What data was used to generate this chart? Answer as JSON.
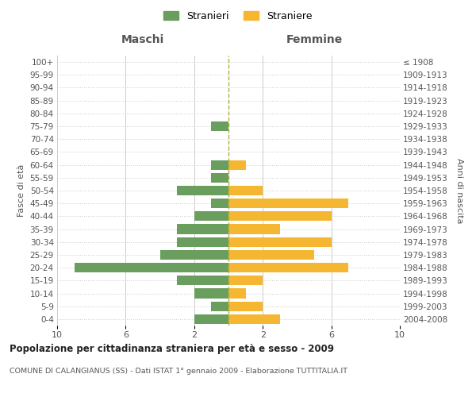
{
  "age_groups": [
    "0-4",
    "5-9",
    "10-14",
    "15-19",
    "20-24",
    "25-29",
    "30-34",
    "35-39",
    "40-44",
    "45-49",
    "50-54",
    "55-59",
    "60-64",
    "65-69",
    "70-74",
    "75-79",
    "80-84",
    "85-89",
    "90-94",
    "95-99",
    "100+"
  ],
  "birth_years": [
    "2004-2008",
    "1999-2003",
    "1994-1998",
    "1989-1993",
    "1984-1988",
    "1979-1983",
    "1974-1978",
    "1969-1973",
    "1964-1968",
    "1959-1963",
    "1954-1958",
    "1949-1953",
    "1944-1948",
    "1939-1943",
    "1934-1938",
    "1929-1933",
    "1924-1928",
    "1919-1923",
    "1914-1918",
    "1909-1913",
    "≤ 1908"
  ],
  "maschi": [
    2,
    1,
    2,
    3,
    9,
    4,
    3,
    3,
    2,
    1,
    3,
    1,
    1,
    0,
    0,
    1,
    0,
    0,
    0,
    0,
    0
  ],
  "femmine": [
    3,
    2,
    1,
    2,
    7,
    5,
    6,
    3,
    6,
    7,
    2,
    0,
    1,
    0,
    0,
    0,
    0,
    0,
    0,
    0,
    0
  ],
  "color_maschi": "#6a9e5e",
  "color_femmine": "#f5b731",
  "color_center_line": "#b0b040",
  "background_color": "#ffffff",
  "grid_color": "#cccccc",
  "title": "Popolazione per cittadinanza straniera per età e sesso - 2009",
  "subtitle": "COMUNE DI CALANGIANUS (SS) - Dati ISTAT 1° gennaio 2009 - Elaborazione TUTTITALIA.IT",
  "xlabel_left": "Maschi",
  "xlabel_right": "Femmine",
  "ylabel_left": "Fasce di età",
  "ylabel_right": "Anni di nascita",
  "legend_maschi": "Stranieri",
  "legend_femmine": "Straniere",
  "xlim": 10
}
